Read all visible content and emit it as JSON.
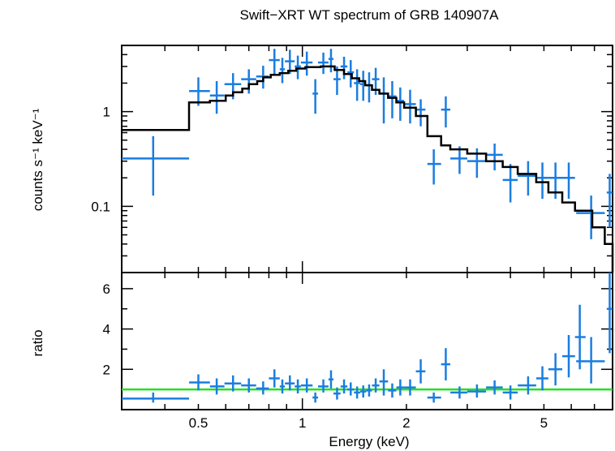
{
  "chart_data": [
    {
      "type": "scatter",
      "title": "Swift−XRT WT spectrum of GRB 140907A",
      "ylabel": "counts s⁻¹ keV⁻¹",
      "xlabel": "",
      "xscale": "log",
      "yscale": "log",
      "xlim": [
        0.3,
        7.9
      ],
      "ylim": [
        0.02,
        5.0
      ],
      "x_ticks": [],
      "y_ticks": [
        {
          "value": 1,
          "label": "1"
        },
        {
          "value": 0.1,
          "label": "0.1"
        }
      ],
      "colors": {
        "data": "#1a7de0",
        "model": "#000000"
      },
      "series": [
        {
          "kind": "data-with-errors",
          "points": [
            {
              "x": 0.37,
              "xlo": 0.3,
              "xhi": 0.47,
              "y": 0.32,
              "ylo": 0.13,
              "yhi": 0.55
            },
            {
              "x": 0.5,
              "xlo": 0.47,
              "xhi": 0.54,
              "y": 1.65,
              "ylo": 1.15,
              "yhi": 2.3
            },
            {
              "x": 0.565,
              "xlo": 0.54,
              "xhi": 0.595,
              "y": 1.48,
              "ylo": 0.95,
              "yhi": 2.1
            },
            {
              "x": 0.63,
              "xlo": 0.595,
              "xhi": 0.665,
              "y": 1.95,
              "ylo": 1.35,
              "yhi": 2.55
            },
            {
              "x": 0.7,
              "xlo": 0.665,
              "xhi": 0.735,
              "y": 2.2,
              "ylo": 1.55,
              "yhi": 2.8
            },
            {
              "x": 0.77,
              "xlo": 0.735,
              "xhi": 0.8,
              "y": 2.35,
              "ylo": 1.75,
              "yhi": 3.05
            },
            {
              "x": 0.83,
              "xlo": 0.8,
              "xhi": 0.86,
              "y": 3.5,
              "ylo": 2.5,
              "yhi": 4.6
            },
            {
              "x": 0.875,
              "xlo": 0.86,
              "xhi": 0.89,
              "y": 2.8,
              "ylo": 2.0,
              "yhi": 3.7
            },
            {
              "x": 0.92,
              "xlo": 0.89,
              "xhi": 0.95,
              "y": 3.4,
              "ylo": 2.5,
              "yhi": 4.5
            },
            {
              "x": 0.97,
              "xlo": 0.95,
              "xhi": 0.99,
              "y": 3.0,
              "ylo": 2.2,
              "yhi": 3.9
            },
            {
              "x": 1.03,
              "xlo": 0.99,
              "xhi": 1.07,
              "y": 3.3,
              "ylo": 2.4,
              "yhi": 4.3
            },
            {
              "x": 1.09,
              "xlo": 1.07,
              "xhi": 1.11,
              "y": 1.55,
              "ylo": 0.95,
              "yhi": 2.2
            },
            {
              "x": 1.15,
              "xlo": 1.11,
              "xhi": 1.19,
              "y": 3.3,
              "ylo": 2.5,
              "yhi": 4.2
            },
            {
              "x": 1.21,
              "xlo": 1.19,
              "xhi": 1.23,
              "y": 3.6,
              "ylo": 2.6,
              "yhi": 4.6
            },
            {
              "x": 1.26,
              "xlo": 1.23,
              "xhi": 1.29,
              "y": 2.2,
              "ylo": 1.5,
              "yhi": 3.0
            },
            {
              "x": 1.32,
              "xlo": 1.29,
              "xhi": 1.35,
              "y": 3.0,
              "ylo": 2.2,
              "yhi": 3.8
            },
            {
              "x": 1.38,
              "xlo": 1.35,
              "xhi": 1.41,
              "y": 2.6,
              "ylo": 1.8,
              "yhi": 3.5
            },
            {
              "x": 1.44,
              "xlo": 1.41,
              "xhi": 1.47,
              "y": 2.0,
              "ylo": 1.3,
              "yhi": 2.8
            },
            {
              "x": 1.5,
              "xlo": 1.47,
              "xhi": 1.53,
              "y": 1.95,
              "ylo": 1.3,
              "yhi": 2.7
            },
            {
              "x": 1.56,
              "xlo": 1.53,
              "xhi": 1.59,
              "y": 1.9,
              "ylo": 1.25,
              "yhi": 2.6
            },
            {
              "x": 1.63,
              "xlo": 1.59,
              "xhi": 1.67,
              "y": 2.2,
              "ylo": 1.5,
              "yhi": 2.9
            },
            {
              "x": 1.72,
              "xlo": 1.67,
              "xhi": 1.77,
              "y": 1.55,
              "ylo": 0.75,
              "yhi": 2.3
            },
            {
              "x": 1.82,
              "xlo": 1.77,
              "xhi": 1.87,
              "y": 1.45,
              "ylo": 0.85,
              "yhi": 2.1
            },
            {
              "x": 1.92,
              "xlo": 1.87,
              "xhi": 1.97,
              "y": 1.3,
              "ylo": 0.8,
              "yhi": 1.8
            },
            {
              "x": 2.05,
              "xlo": 1.97,
              "xhi": 2.13,
              "y": 1.2,
              "ylo": 0.75,
              "yhi": 1.7
            },
            {
              "x": 2.2,
              "xlo": 2.13,
              "xhi": 2.27,
              "y": 1.05,
              "ylo": 0.7,
              "yhi": 1.35
            },
            {
              "x": 2.4,
              "xlo": 2.3,
              "xhi": 2.52,
              "y": 0.28,
              "ylo": 0.17,
              "yhi": 0.4
            },
            {
              "x": 2.6,
              "xlo": 2.52,
              "xhi": 2.68,
              "y": 1.05,
              "ylo": 0.68,
              "yhi": 1.45
            },
            {
              "x": 2.85,
              "xlo": 2.68,
              "xhi": 3.0,
              "y": 0.32,
              "ylo": 0.22,
              "yhi": 0.43
            },
            {
              "x": 3.2,
              "xlo": 3.0,
              "xhi": 3.4,
              "y": 0.3,
              "ylo": 0.2,
              "yhi": 0.41
            },
            {
              "x": 3.6,
              "xlo": 3.4,
              "xhi": 3.8,
              "y": 0.35,
              "ylo": 0.24,
              "yhi": 0.46
            },
            {
              "x": 4.0,
              "xlo": 3.8,
              "xhi": 4.2,
              "y": 0.19,
              "ylo": 0.11,
              "yhi": 0.28
            },
            {
              "x": 4.5,
              "xlo": 4.2,
              "xhi": 4.75,
              "y": 0.21,
              "ylo": 0.13,
              "yhi": 0.3
            },
            {
              "x": 4.95,
              "xlo": 4.75,
              "xhi": 5.15,
              "y": 0.2,
              "ylo": 0.12,
              "yhi": 0.29
            },
            {
              "x": 5.4,
              "xlo": 5.15,
              "xhi": 5.65,
              "y": 0.2,
              "ylo": 0.12,
              "yhi": 0.29
            },
            {
              "x": 5.9,
              "xlo": 5.65,
              "xhi": 6.15,
              "y": 0.2,
              "ylo": 0.12,
              "yhi": 0.29
            },
            {
              "x": 6.85,
              "xlo": 6.2,
              "xhi": 7.5,
              "y": 0.085,
              "ylo": 0.045,
              "yhi": 0.13
            },
            {
              "x": 7.75,
              "xlo": 7.6,
              "xhi": 7.9,
              "y": 0.14,
              "ylo": 0.06,
              "yhi": 0.22
            }
          ]
        },
        {
          "kind": "model-step",
          "edges": [
            0.3,
            0.47,
            0.54,
            0.6,
            0.63,
            0.67,
            0.7,
            0.74,
            0.77,
            0.81,
            0.86,
            0.91,
            0.96,
            1.02,
            1.13,
            1.24,
            1.32,
            1.39,
            1.46,
            1.52,
            1.59,
            1.67,
            1.77,
            1.87,
            1.97,
            2.13,
            2.3,
            2.52,
            2.68,
            3.0,
            3.4,
            3.8,
            4.2,
            4.75,
            5.15,
            5.65,
            6.15,
            6.9,
            7.5,
            7.9
          ],
          "values": [
            0.64,
            1.25,
            1.3,
            1.48,
            1.6,
            1.75,
            1.95,
            2.1,
            2.3,
            2.45,
            2.55,
            2.7,
            2.85,
            2.95,
            3.0,
            2.75,
            2.5,
            2.25,
            2.1,
            1.9,
            1.7,
            1.55,
            1.4,
            1.25,
            1.1,
            0.9,
            0.55,
            0.44,
            0.4,
            0.36,
            0.3,
            0.26,
            0.22,
            0.18,
            0.14,
            0.11,
            0.09,
            0.06,
            0.04
          ]
        }
      ]
    },
    {
      "type": "scatter",
      "title": "",
      "ylabel": "ratio",
      "xlabel": "Energy (keV)",
      "xscale": "log",
      "yscale": "linear",
      "xlim": [
        0.3,
        7.9
      ],
      "ylim": [
        0.0,
        6.8
      ],
      "x_ticks": [
        {
          "value": 0.5,
          "label": "0.5"
        },
        {
          "value": 1,
          "label": "1"
        },
        {
          "value": 2,
          "label": "2"
        },
        {
          "value": 5,
          "label": "5"
        }
      ],
      "y_ticks": [
        {
          "value": 2,
          "label": "2"
        },
        {
          "value": 4,
          "label": "4"
        },
        {
          "value": 6,
          "label": "6"
        }
      ],
      "reference_line": 1,
      "colors": {
        "data": "#1a7de0",
        "reference": "#22e022"
      },
      "series": [
        {
          "kind": "data-with-errors",
          "points": [
            {
              "x": 0.37,
              "xlo": 0.3,
              "xhi": 0.47,
              "y": 0.55,
              "ylo": 0.35,
              "yhi": 0.85
            },
            {
              "x": 0.5,
              "xlo": 0.47,
              "xhi": 0.54,
              "y": 1.35,
              "ylo": 0.95,
              "yhi": 1.75
            },
            {
              "x": 0.565,
              "xlo": 0.54,
              "xhi": 0.595,
              "y": 1.15,
              "ylo": 0.75,
              "yhi": 1.55
            },
            {
              "x": 0.63,
              "xlo": 0.595,
              "xhi": 0.665,
              "y": 1.3,
              "ylo": 0.9,
              "yhi": 1.7
            },
            {
              "x": 0.7,
              "xlo": 0.665,
              "xhi": 0.735,
              "y": 1.2,
              "ylo": 0.85,
              "yhi": 1.55
            },
            {
              "x": 0.77,
              "xlo": 0.735,
              "xhi": 0.8,
              "y": 1.05,
              "ylo": 0.75,
              "yhi": 1.4
            },
            {
              "x": 0.83,
              "xlo": 0.8,
              "xhi": 0.86,
              "y": 1.55,
              "ylo": 1.1,
              "yhi": 2.0
            },
            {
              "x": 0.875,
              "xlo": 0.86,
              "xhi": 0.89,
              "y": 1.15,
              "ylo": 0.8,
              "yhi": 1.5
            },
            {
              "x": 0.92,
              "xlo": 0.89,
              "xhi": 0.95,
              "y": 1.3,
              "ylo": 0.95,
              "yhi": 1.7
            },
            {
              "x": 0.97,
              "xlo": 0.95,
              "xhi": 0.99,
              "y": 1.15,
              "ylo": 0.8,
              "yhi": 1.5
            },
            {
              "x": 1.03,
              "xlo": 0.99,
              "xhi": 1.07,
              "y": 1.2,
              "ylo": 0.85,
              "yhi": 1.55
            },
            {
              "x": 1.09,
              "xlo": 1.07,
              "xhi": 1.11,
              "y": 0.6,
              "ylo": 0.35,
              "yhi": 0.85
            },
            {
              "x": 1.15,
              "xlo": 1.11,
              "xhi": 1.19,
              "y": 1.15,
              "ylo": 0.85,
              "yhi": 1.5
            },
            {
              "x": 1.21,
              "xlo": 1.19,
              "xhi": 1.23,
              "y": 1.5,
              "ylo": 1.05,
              "yhi": 1.95
            },
            {
              "x": 1.26,
              "xlo": 1.23,
              "xhi": 1.29,
              "y": 0.8,
              "ylo": 0.5,
              "yhi": 1.1
            },
            {
              "x": 1.32,
              "xlo": 1.29,
              "xhi": 1.35,
              "y": 1.15,
              "ylo": 0.8,
              "yhi": 1.5
            },
            {
              "x": 1.38,
              "xlo": 1.35,
              "xhi": 1.41,
              "y": 1.0,
              "ylo": 0.7,
              "yhi": 1.35
            },
            {
              "x": 1.44,
              "xlo": 1.41,
              "xhi": 1.47,
              "y": 0.85,
              "ylo": 0.55,
              "yhi": 1.15
            },
            {
              "x": 1.5,
              "xlo": 1.47,
              "xhi": 1.53,
              "y": 0.9,
              "ylo": 0.6,
              "yhi": 1.2
            },
            {
              "x": 1.56,
              "xlo": 1.53,
              "xhi": 1.59,
              "y": 0.95,
              "ylo": 0.65,
              "yhi": 1.25
            },
            {
              "x": 1.63,
              "xlo": 1.59,
              "xhi": 1.67,
              "y": 1.2,
              "ylo": 0.85,
              "yhi": 1.55
            },
            {
              "x": 1.72,
              "xlo": 1.67,
              "xhi": 1.77,
              "y": 1.4,
              "ylo": 0.7,
              "yhi": 2.0
            },
            {
              "x": 1.82,
              "xlo": 1.77,
              "xhi": 1.87,
              "y": 0.95,
              "ylo": 0.6,
              "yhi": 1.3
            },
            {
              "x": 1.92,
              "xlo": 1.87,
              "xhi": 1.97,
              "y": 1.1,
              "ylo": 0.7,
              "yhi": 1.5
            },
            {
              "x": 2.05,
              "xlo": 1.97,
              "xhi": 2.13,
              "y": 1.1,
              "ylo": 0.7,
              "yhi": 1.5
            },
            {
              "x": 2.2,
              "xlo": 2.13,
              "xhi": 2.27,
              "y": 1.9,
              "ylo": 1.3,
              "yhi": 2.5
            },
            {
              "x": 2.4,
              "xlo": 2.3,
              "xhi": 2.52,
              "y": 0.6,
              "ylo": 0.35,
              "yhi": 0.85
            },
            {
              "x": 2.6,
              "xlo": 2.52,
              "xhi": 2.68,
              "y": 2.25,
              "ylo": 1.45,
              "yhi": 3.05
            },
            {
              "x": 2.85,
              "xlo": 2.68,
              "xhi": 3.0,
              "y": 0.85,
              "ylo": 0.55,
              "yhi": 1.15
            },
            {
              "x": 3.2,
              "xlo": 3.0,
              "xhi": 3.4,
              "y": 0.9,
              "ylo": 0.6,
              "yhi": 1.25
            },
            {
              "x": 3.6,
              "xlo": 3.4,
              "xhi": 3.8,
              "y": 1.1,
              "ylo": 0.75,
              "yhi": 1.45
            },
            {
              "x": 4.0,
              "xlo": 3.8,
              "xhi": 4.2,
              "y": 0.85,
              "ylo": 0.5,
              "yhi": 1.2
            },
            {
              "x": 4.5,
              "xlo": 4.2,
              "xhi": 4.75,
              "y": 1.2,
              "ylo": 0.75,
              "yhi": 1.65
            },
            {
              "x": 4.95,
              "xlo": 4.75,
              "xhi": 5.15,
              "y": 1.55,
              "ylo": 0.95,
              "yhi": 2.15
            },
            {
              "x": 5.4,
              "xlo": 5.15,
              "xhi": 5.65,
              "y": 2.0,
              "ylo": 1.2,
              "yhi": 2.8
            },
            {
              "x": 5.9,
              "xlo": 5.65,
              "xhi": 6.15,
              "y": 2.65,
              "ylo": 1.6,
              "yhi": 3.7
            },
            {
              "x": 6.35,
              "xlo": 6.15,
              "xhi": 6.6,
              "y": 3.6,
              "ylo": 2.0,
              "yhi": 5.2
            },
            {
              "x": 6.85,
              "xlo": 6.2,
              "xhi": 7.5,
              "y": 2.4,
              "ylo": 1.3,
              "yhi": 3.6
            },
            {
              "x": 7.75,
              "xlo": 7.6,
              "xhi": 7.9,
              "y": 5.0,
              "ylo": 2.8,
              "yhi": 6.8
            }
          ]
        }
      ]
    }
  ]
}
